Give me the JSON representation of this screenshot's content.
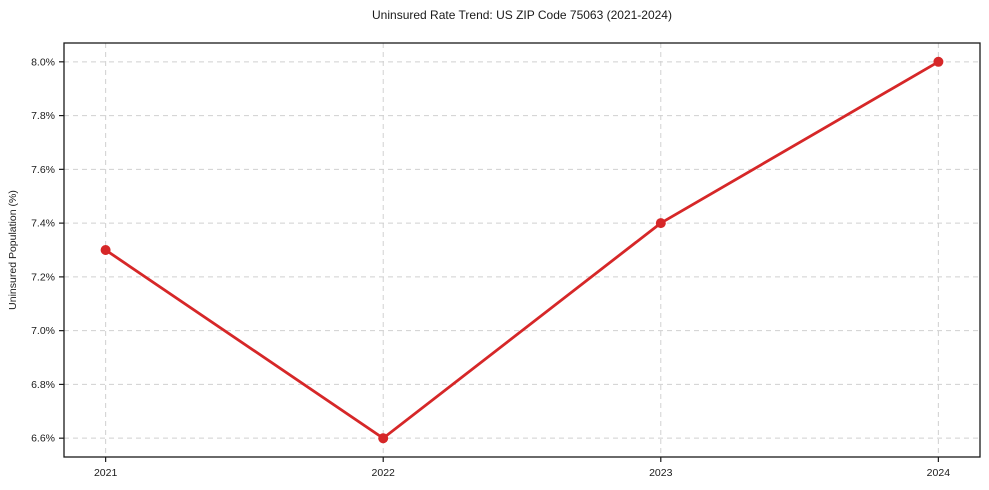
{
  "chart_data": {
    "type": "line",
    "title": "Uninsured Rate Trend: US ZIP Code 75063 (2021-2024)",
    "xlabel": "",
    "ylabel": "Uninsured Population (%)",
    "x": [
      2021,
      2022,
      2023,
      2024
    ],
    "x_tick_labels": [
      "2021",
      "2022",
      "2023",
      "2024"
    ],
    "series": [
      {
        "name": "Uninsured Population (%)",
        "values": [
          7.3,
          6.6,
          7.4,
          8.0
        ]
      }
    ],
    "y_ticks": [
      6.6,
      6.8,
      7.0,
      7.2,
      7.4,
      7.6,
      7.8,
      8.0
    ],
    "y_tick_labels": [
      "6.6%",
      "6.8%",
      "7.0%",
      "7.2%",
      "7.4%",
      "7.6%",
      "7.8%",
      "8.0%"
    ],
    "xlim": [
      2020.85,
      2024.15
    ],
    "ylim": [
      6.53,
      8.07
    ],
    "grid": true,
    "grid_style": "dashed",
    "legend": false,
    "line_color": "#d62728",
    "marker": "circle",
    "background": "#ffffff"
  }
}
